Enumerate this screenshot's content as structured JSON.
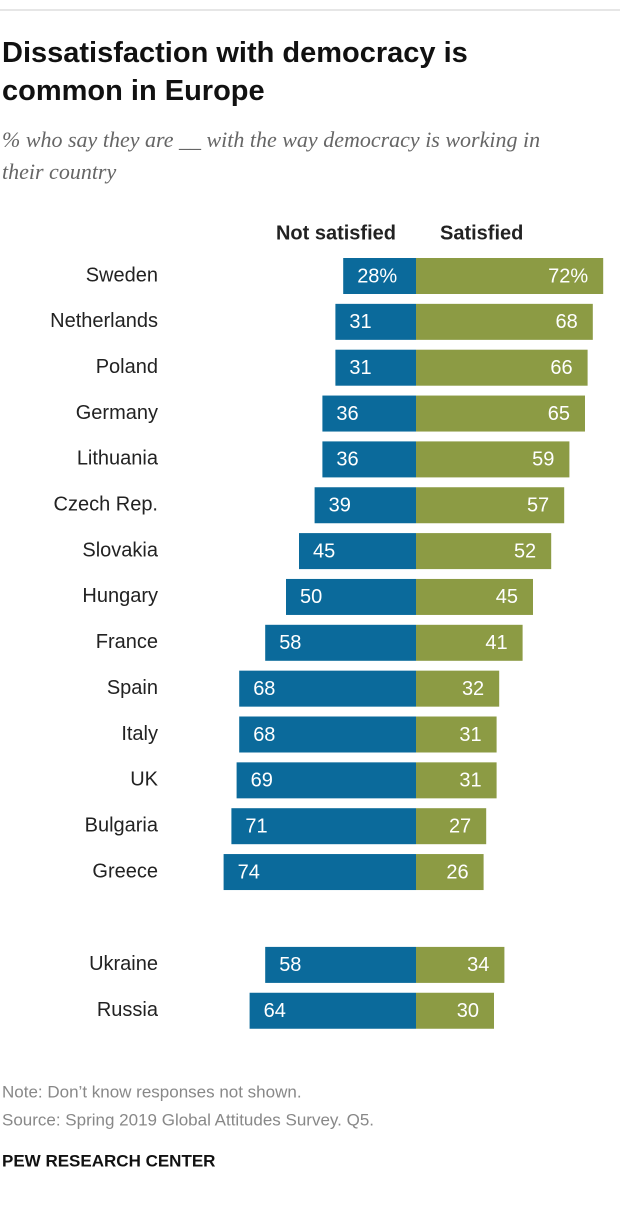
{
  "chart_data": {
    "type": "diverging-bar",
    "title": "Dissatisfaction with democracy is common in Europe",
    "subtitle": "% who say they are __ with the way democracy is working in their country",
    "categories": [
      "Sweden",
      "Netherlands",
      "Poland",
      "Germany",
      "Lithuania",
      "Czech Rep.",
      "Slovakia",
      "Hungary",
      "France",
      "Spain",
      "Italy",
      "UK",
      "Bulgaria",
      "Greece",
      "Ukraine",
      "Russia"
    ],
    "series": [
      {
        "name": "Not satisfied",
        "color": "#0b6a9b",
        "values": [
          28,
          31,
          31,
          36,
          36,
          39,
          45,
          50,
          58,
          68,
          68,
          69,
          71,
          74,
          58,
          64
        ],
        "value_labels": [
          "28%",
          "31",
          "31",
          "36",
          "36",
          "39",
          "45",
          "50",
          "58",
          "68",
          "68",
          "69",
          "71",
          "74",
          "58",
          "64"
        ]
      },
      {
        "name": "Satisfied",
        "color": "#8c9b44",
        "values": [
          72,
          68,
          66,
          65,
          59,
          57,
          52,
          45,
          41,
          32,
          31,
          31,
          27,
          26,
          34,
          30
        ],
        "value_labels": [
          "72%",
          "68",
          "66",
          "65",
          "59",
          "57",
          "52",
          "45",
          "41",
          "32",
          "31",
          "31",
          "27",
          "26",
          "34",
          "30"
        ]
      }
    ],
    "note": "Note: Don’t know responses not shown.",
    "source": "Source: Spring 2019 Global Attitudes Survey. Q5.",
    "credit": "PEW RESEARCH CENTER"
  }
}
